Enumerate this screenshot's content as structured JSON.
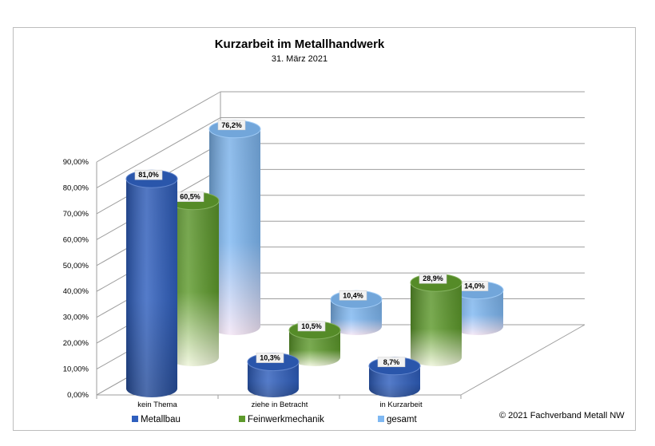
{
  "chart_data": {
    "type": "bar",
    "subtype": "3d-cylinder",
    "title": "Kurzarbeit im Metallhandwerk",
    "subtitle": "31. März 2021",
    "categories": [
      "kein Thema",
      "ziehe in Betracht",
      "in Kurzarbeit"
    ],
    "series": [
      {
        "name": "Metallbau",
        "values": [
          81.0,
          10.3,
          8.7
        ],
        "labels": [
          "81,0%",
          "10,3%",
          "8,7%"
        ],
        "color": "#2f5fbe"
      },
      {
        "name": "Feinwerkmechanik",
        "values": [
          60.5,
          10.5,
          28.9
        ],
        "labels": [
          "60,5%",
          "10,5%",
          "28,9%"
        ],
        "color": "#5e9a2c"
      },
      {
        "name": "gesamt",
        "values": [
          76.2,
          10.4,
          14.0
        ],
        "labels": [
          "76,2%",
          "10,4%",
          "14,0%"
        ],
        "color": "#7fb8f2"
      }
    ],
    "ylim": [
      0,
      90
    ],
    "yticks": [
      "0,00%",
      "10,00%",
      "20,00%",
      "30,00%",
      "40,00%",
      "50,00%",
      "60,00%",
      "70,00%",
      "80,00%",
      "90,00%"
    ],
    "grid": true,
    "legend_position": "bottom",
    "footer": "© 2021 Fachverband Metall NW"
  }
}
